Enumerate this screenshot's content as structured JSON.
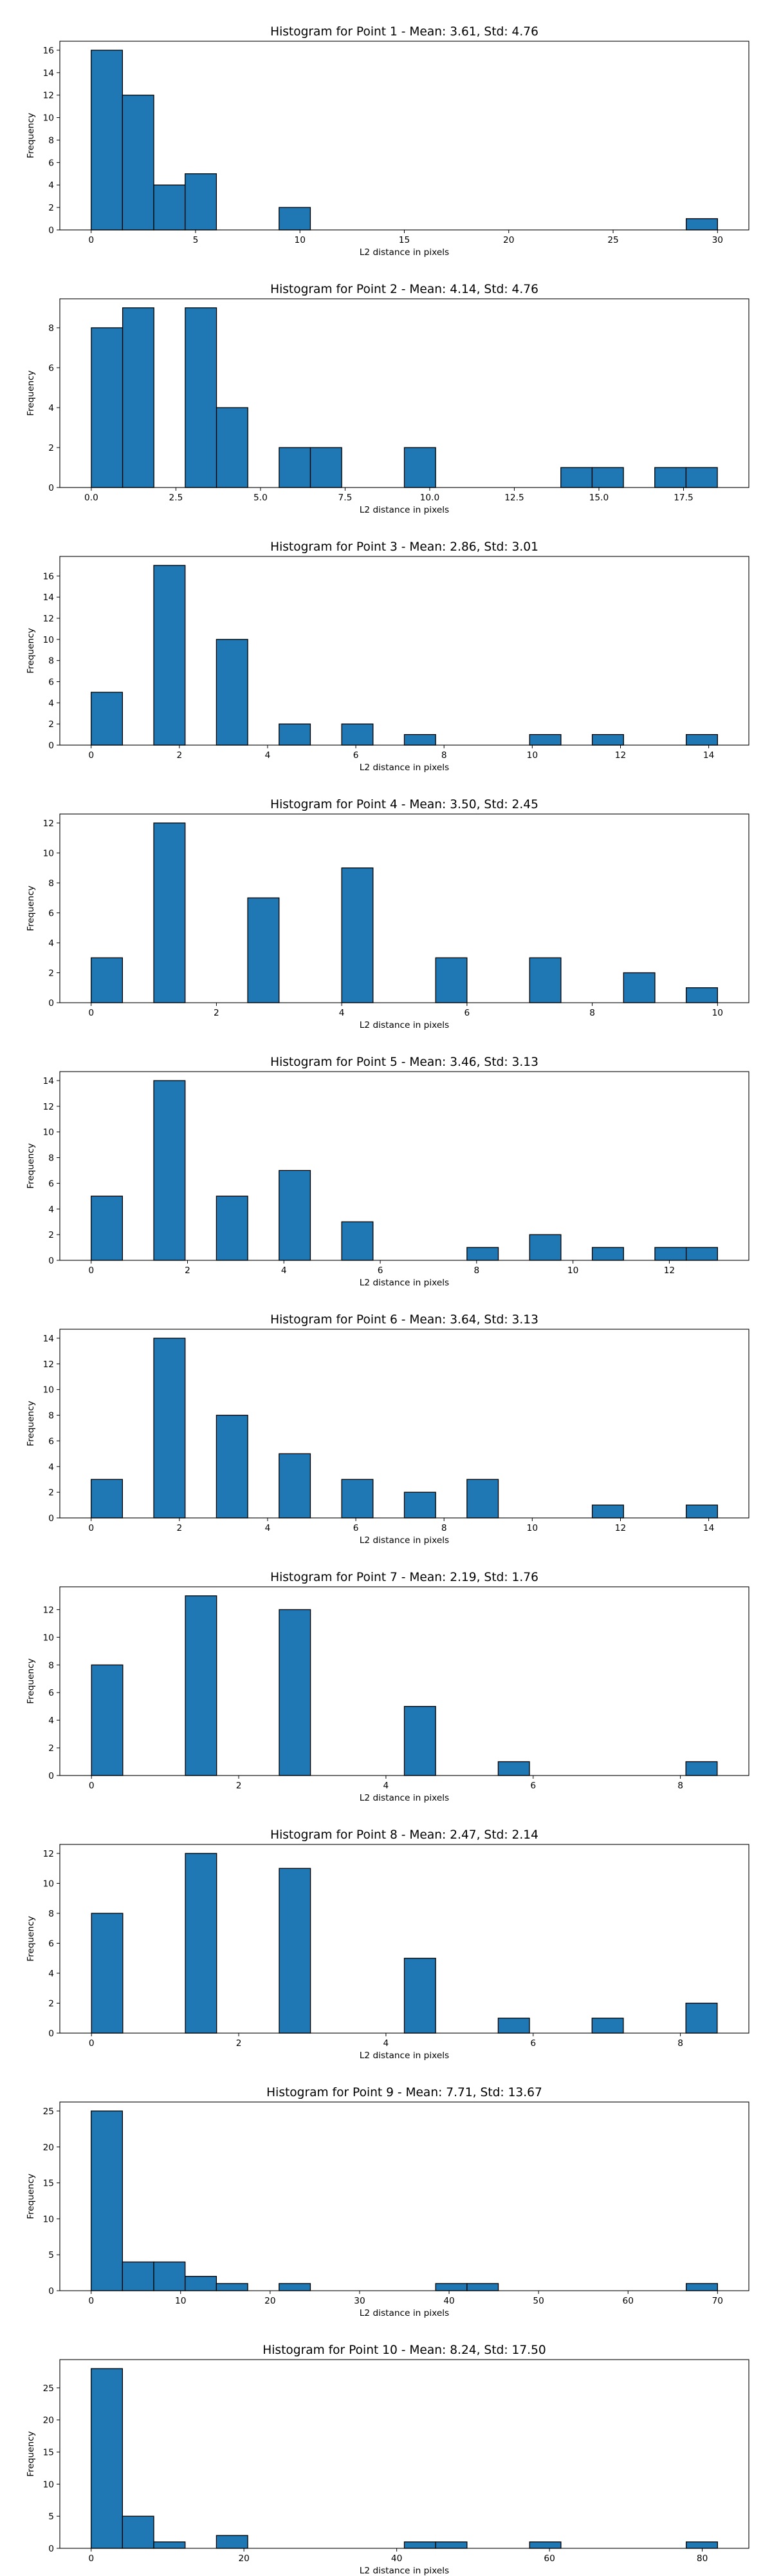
{
  "colors": {
    "bar_fill": "#1f77b4",
    "bar_edge": "#000000",
    "frame": "#000000",
    "background": "#ffffff"
  },
  "chart_data": [
    {
      "type": "bar",
      "title": "Histogram for Point 1 - Mean: 3.61, Std: 4.76",
      "xlabel": "L2 distance in pixels",
      "ylabel": "Frequency",
      "xlim": [
        -1.5,
        31.5
      ],
      "ylim": [
        0,
        16.8
      ],
      "xticks": [
        0,
        5,
        10,
        15,
        20,
        25,
        30
      ],
      "xtick_labels": [
        "0",
        "5",
        "10",
        "15",
        "20",
        "25",
        "30"
      ],
      "yticks": [
        0,
        2,
        4,
        6,
        8,
        10,
        12,
        14,
        16
      ],
      "ytick_labels": [
        "0",
        "2",
        "4",
        "6",
        "8",
        "10",
        "12",
        "14",
        "16"
      ],
      "bins": [
        {
          "start": 0.0,
          "end": 1.5,
          "count": 16
        },
        {
          "start": 1.5,
          "end": 3.0,
          "count": 12
        },
        {
          "start": 3.0,
          "end": 4.5,
          "count": 4
        },
        {
          "start": 4.5,
          "end": 6.0,
          "count": 5
        },
        {
          "start": 9.0,
          "end": 10.5,
          "count": 2
        },
        {
          "start": 28.5,
          "end": 30.0,
          "count": 1
        }
      ]
    },
    {
      "type": "bar",
      "title": "Histogram for Point 2 - Mean: 4.14, Std: 4.76",
      "xlabel": "L2 distance in pixels",
      "ylabel": "Frequency",
      "xlim": [
        -0.93,
        19.43
      ],
      "ylim": [
        0,
        9.45
      ],
      "xticks": [
        0,
        2.5,
        5,
        7.5,
        10,
        12.5,
        15,
        17.5
      ],
      "xtick_labels": [
        "0.0",
        "2.5",
        "5.0",
        "7.5",
        "10.0",
        "12.5",
        "15.0",
        "17.5"
      ],
      "yticks": [
        0,
        2,
        4,
        6,
        8
      ],
      "ytick_labels": [
        "0",
        "2",
        "4",
        "6",
        "8"
      ],
      "bins": [
        {
          "start": 0.0,
          "end": 0.925,
          "count": 8
        },
        {
          "start": 0.925,
          "end": 1.85,
          "count": 9
        },
        {
          "start": 2.775,
          "end": 3.7,
          "count": 9
        },
        {
          "start": 3.7,
          "end": 4.625,
          "count": 4
        },
        {
          "start": 5.55,
          "end": 6.475,
          "count": 2
        },
        {
          "start": 6.475,
          "end": 7.4,
          "count": 2
        },
        {
          "start": 9.25,
          "end": 10.175,
          "count": 2
        },
        {
          "start": 13.875,
          "end": 14.8,
          "count": 1
        },
        {
          "start": 14.8,
          "end": 15.725,
          "count": 1
        },
        {
          "start": 16.65,
          "end": 17.575,
          "count": 1
        },
        {
          "start": 17.575,
          "end": 18.5,
          "count": 1
        }
      ]
    },
    {
      "type": "bar",
      "title": "Histogram for Point 3 - Mean: 2.86, Std: 3.01",
      "xlabel": "L2 distance in pixels",
      "ylabel": "Frequency",
      "xlim": [
        -0.71,
        14.91
      ],
      "ylim": [
        0,
        17.85
      ],
      "xticks": [
        0,
        2,
        4,
        6,
        8,
        10,
        12,
        14
      ],
      "xtick_labels": [
        "0",
        "2",
        "4",
        "6",
        "8",
        "10",
        "12",
        "14"
      ],
      "yticks": [
        0,
        2,
        4,
        6,
        8,
        10,
        12,
        14,
        16
      ],
      "ytick_labels": [
        "0",
        "2",
        "4",
        "6",
        "8",
        "10",
        "12",
        "14",
        "16"
      ],
      "bins": [
        {
          "start": 0.0,
          "end": 0.71,
          "count": 5
        },
        {
          "start": 1.42,
          "end": 2.13,
          "count": 17
        },
        {
          "start": 2.84,
          "end": 3.55,
          "count": 10
        },
        {
          "start": 4.26,
          "end": 4.97,
          "count": 2
        },
        {
          "start": 5.68,
          "end": 6.39,
          "count": 2
        },
        {
          "start": 7.1,
          "end": 7.81,
          "count": 1
        },
        {
          "start": 9.94,
          "end": 10.65,
          "count": 1
        },
        {
          "start": 11.36,
          "end": 12.07,
          "count": 1
        },
        {
          "start": 13.49,
          "end": 14.2,
          "count": 1
        }
      ]
    },
    {
      "type": "bar",
      "title": "Histogram for Point 4 - Mean: 3.50, Std: 2.45",
      "xlabel": "L2 distance in pixels",
      "ylabel": "Frequency",
      "xlim": [
        -0.5,
        10.5
      ],
      "ylim": [
        0,
        12.6
      ],
      "xticks": [
        0,
        2,
        4,
        6,
        8,
        10
      ],
      "xtick_labels": [
        "0",
        "2",
        "4",
        "6",
        "8",
        "10"
      ],
      "yticks": [
        0,
        2,
        4,
        6,
        8,
        10,
        12
      ],
      "ytick_labels": [
        "0",
        "2",
        "4",
        "6",
        "8",
        "10",
        "12"
      ],
      "bins": [
        {
          "start": 0.0,
          "end": 0.5,
          "count": 3
        },
        {
          "start": 1.0,
          "end": 1.5,
          "count": 12
        },
        {
          "start": 2.5,
          "end": 3.0,
          "count": 7
        },
        {
          "start": 4.0,
          "end": 4.5,
          "count": 9
        },
        {
          "start": 5.5,
          "end": 6.0,
          "count": 3
        },
        {
          "start": 7.0,
          "end": 7.5,
          "count": 3
        },
        {
          "start": 8.5,
          "end": 9.0,
          "count": 2
        },
        {
          "start": 9.5,
          "end": 10.0,
          "count": 1
        }
      ]
    },
    {
      "type": "bar",
      "title": "Histogram for Point 5 - Mean: 3.46, Std: 3.13",
      "xlabel": "L2 distance in pixels",
      "ylabel": "Frequency",
      "xlim": [
        -0.65,
        13.65
      ],
      "ylim": [
        0,
        14.7
      ],
      "xticks": [
        0,
        2,
        4,
        6,
        8,
        10,
        12
      ],
      "xtick_labels": [
        "0",
        "2",
        "4",
        "6",
        "8",
        "10",
        "12"
      ],
      "yticks": [
        0,
        2,
        4,
        6,
        8,
        10,
        12,
        14
      ],
      "ytick_labels": [
        "0",
        "2",
        "4",
        "6",
        "8",
        "10",
        "12",
        "14"
      ],
      "bins": [
        {
          "start": 0.0,
          "end": 1.0,
          "count": 5
        },
        {
          "start": 2.0,
          "end": 3.0,
          "count": 14
        },
        {
          "start": 4.0,
          "end": 5.0,
          "count": 5
        },
        {
          "start": 6.0,
          "end": 7.0,
          "count": 7
        },
        {
          "start": 8.0,
          "end": 9.0,
          "count": 3
        },
        {
          "start": 12.0,
          "end": 13.0,
          "count": 1
        },
        {
          "start": 14.0,
          "end": 15.0,
          "count": 2
        },
        {
          "start": 16.0,
          "end": 17.0,
          "count": 1
        },
        {
          "start": 18.0,
          "end": 19.0,
          "count": 1
        },
        {
          "start": 19.0,
          "end": 20.0,
          "count": 1
        }
      ],
      "bin_scale": 0.65
    },
    {
      "type": "bar",
      "title": "Histogram for Point 6 - Mean: 3.64, Std: 3.13",
      "xlabel": "L2 distance in pixels",
      "ylabel": "Frequency",
      "xlim": [
        -0.71,
        14.91
      ],
      "ylim": [
        0,
        14.7
      ],
      "xticks": [
        0,
        2,
        4,
        6,
        8,
        10,
        12,
        14
      ],
      "xtick_labels": [
        "0",
        "2",
        "4",
        "6",
        "8",
        "10",
        "12",
        "14"
      ],
      "yticks": [
        0,
        2,
        4,
        6,
        8,
        10,
        12,
        14
      ],
      "ytick_labels": [
        "0",
        "2",
        "4",
        "6",
        "8",
        "10",
        "12",
        "14"
      ],
      "bins": [
        {
          "start": 0.0,
          "end": 0.71,
          "count": 3
        },
        {
          "start": 1.42,
          "end": 2.13,
          "count": 14
        },
        {
          "start": 2.84,
          "end": 3.55,
          "count": 8
        },
        {
          "start": 4.26,
          "end": 4.97,
          "count": 5
        },
        {
          "start": 5.68,
          "end": 6.39,
          "count": 3
        },
        {
          "start": 7.1,
          "end": 7.81,
          "count": 2
        },
        {
          "start": 8.52,
          "end": 9.23,
          "count": 3
        },
        {
          "start": 11.36,
          "end": 12.07,
          "count": 1
        },
        {
          "start": 13.49,
          "end": 14.2,
          "count": 1
        }
      ]
    },
    {
      "type": "bar",
      "title": "Histogram for Point 7 - Mean: 2.19, Std: 1.76",
      "xlabel": "L2 distance in pixels",
      "ylabel": "Frequency",
      "xlim": [
        -0.43,
        8.93
      ],
      "ylim": [
        0,
        13.65
      ],
      "xticks": [
        0,
        2,
        4,
        6,
        8
      ],
      "xtick_labels": [
        "0",
        "2",
        "4",
        "6",
        "8"
      ],
      "yticks": [
        0,
        2,
        4,
        6,
        8,
        10,
        12
      ],
      "ytick_labels": [
        "0",
        "2",
        "4",
        "6",
        "8",
        "10",
        "12"
      ],
      "bins": [
        {
          "start": 0.0,
          "end": 0.425,
          "count": 8
        },
        {
          "start": 1.275,
          "end": 1.7,
          "count": 13
        },
        {
          "start": 2.55,
          "end": 2.975,
          "count": 12
        },
        {
          "start": 4.25,
          "end": 4.675,
          "count": 5
        },
        {
          "start": 5.525,
          "end": 5.95,
          "count": 1
        },
        {
          "start": 8.075,
          "end": 8.5,
          "count": 1
        }
      ]
    },
    {
      "type": "bar",
      "title": "Histogram for Point 8 - Mean: 2.47, Std: 2.14",
      "xlabel": "L2 distance in pixels",
      "ylabel": "Frequency",
      "xlim": [
        -0.43,
        8.93
      ],
      "ylim": [
        0,
        12.6
      ],
      "xticks": [
        0,
        2,
        4,
        6,
        8
      ],
      "xtick_labels": [
        "0",
        "2",
        "4",
        "6",
        "8"
      ],
      "yticks": [
        0,
        2,
        4,
        6,
        8,
        10,
        12
      ],
      "ytick_labels": [
        "0",
        "2",
        "4",
        "6",
        "8",
        "10",
        "12"
      ],
      "bins": [
        {
          "start": 0.0,
          "end": 0.425,
          "count": 8
        },
        {
          "start": 1.275,
          "end": 1.7,
          "count": 12
        },
        {
          "start": 2.55,
          "end": 2.975,
          "count": 11
        },
        {
          "start": 4.25,
          "end": 4.675,
          "count": 5
        },
        {
          "start": 5.525,
          "end": 5.95,
          "count": 1
        },
        {
          "start": 6.8,
          "end": 7.225,
          "count": 1
        },
        {
          "start": 8.075,
          "end": 8.5,
          "count": 2
        }
      ]
    },
    {
      "type": "bar",
      "title": "Histogram for Point 9 - Mean: 7.71, Std: 13.67",
      "xlabel": "L2 distance in pixels",
      "ylabel": "Frequency",
      "xlim": [
        -3.5,
        73.5
      ],
      "ylim": [
        0,
        26.25
      ],
      "xticks": [
        0,
        10,
        20,
        30,
        40,
        50,
        60,
        70
      ],
      "xtick_labels": [
        "0",
        "10",
        "20",
        "30",
        "40",
        "50",
        "60",
        "70"
      ],
      "yticks": [
        0,
        5,
        10,
        15,
        20,
        25
      ],
      "ytick_labels": [
        "0",
        "5",
        "10",
        "15",
        "20",
        "25"
      ],
      "bins": [
        {
          "start": 0.0,
          "end": 3.5,
          "count": 25
        },
        {
          "start": 3.5,
          "end": 7.0,
          "count": 4
        },
        {
          "start": 7.0,
          "end": 10.5,
          "count": 4
        },
        {
          "start": 10.5,
          "end": 14.0,
          "count": 2
        },
        {
          "start": 14.0,
          "end": 17.5,
          "count": 1
        },
        {
          "start": 21.0,
          "end": 24.5,
          "count": 1
        },
        {
          "start": 38.5,
          "end": 42.0,
          "count": 1
        },
        {
          "start": 42.0,
          "end": 45.5,
          "count": 1
        },
        {
          "start": 66.5,
          "end": 70.0,
          "count": 1
        }
      ]
    },
    {
      "type": "bar",
      "title": "Histogram for Point 10 - Mean: 8.24, Std: 17.50",
      "xlabel": "L2 distance in pixels",
      "ylabel": "Frequency",
      "xlim": [
        -4.1,
        86.1
      ],
      "ylim": [
        0,
        29.4
      ],
      "xticks": [
        0,
        20,
        40,
        60,
        80
      ],
      "xtick_labels": [
        "0",
        "20",
        "40",
        "60",
        "80"
      ],
      "yticks": [
        0,
        5,
        10,
        15,
        20,
        25
      ],
      "ytick_labels": [
        "0",
        "5",
        "10",
        "15",
        "20",
        "25"
      ],
      "bins": [
        {
          "start": 0.0,
          "end": 4.1,
          "count": 28
        },
        {
          "start": 4.1,
          "end": 8.2,
          "count": 5
        },
        {
          "start": 8.2,
          "end": 12.3,
          "count": 1
        },
        {
          "start": 16.4,
          "end": 20.5,
          "count": 2
        },
        {
          "start": 41.0,
          "end": 45.1,
          "count": 1
        },
        {
          "start": 45.1,
          "end": 49.2,
          "count": 1
        },
        {
          "start": 57.4,
          "end": 61.5,
          "count": 1
        },
        {
          "start": 77.9,
          "end": 82.0,
          "count": 1
        }
      ]
    }
  ]
}
